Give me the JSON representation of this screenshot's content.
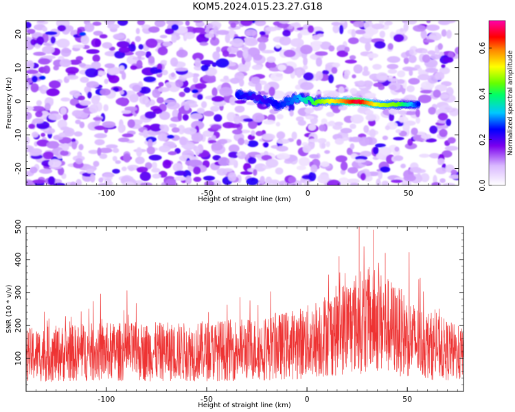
{
  "title": "KOM5.2024.015.23.27.G18",
  "colors": {
    "snr_line": "#ee3333",
    "frame": "#000000",
    "colorbar_stops": [
      "#ffffff",
      "#7b00ee",
      "#0000ff",
      "#00e0ff",
      "#00ff00",
      "#ffff00",
      "#ff0000",
      "#ff00aa"
    ]
  },
  "chart_data": [
    {
      "type": "heatmap",
      "title": "KOM5.2024.015.23.27.G18",
      "xlabel": "Height of straight line (km)",
      "ylabel": "Frequency (Hz)",
      "xlim": [
        -140,
        75
      ],
      "ylim": [
        -25,
        24
      ],
      "xticks": [
        -100,
        -50,
        0,
        50
      ],
      "yticks": [
        -20,
        -10,
        0,
        10,
        20
      ],
      "colorbar": {
        "label": "Normalized spectral amplitude",
        "range": [
          0,
          0.72
        ],
        "ticks": [
          0.0,
          0.2,
          0.4,
          0.6
        ],
        "tick_labels": [
          "0.0",
          "0.2",
          "0.4",
          "0.6"
        ]
      },
      "signal_trace": {
        "x": [
          -35,
          -25,
          -15,
          -5,
          5,
          15,
          25,
          35,
          45,
          55
        ],
        "frequency": [
          2,
          1,
          -1,
          1,
          0,
          0,
          0,
          -1,
          -1,
          -1
        ],
        "amplitude": [
          0.25,
          0.2,
          0.25,
          0.3,
          0.45,
          0.55,
          0.68,
          0.5,
          0.45,
          0.25
        ]
      }
    },
    {
      "type": "line",
      "xlabel": "Height of straight line (km)",
      "ylabel": "SNR (10 * v/v)",
      "xlim": [
        -140,
        78
      ],
      "ylim": [
        0,
        500
      ],
      "xticks": [
        -100,
        -50,
        0,
        50
      ],
      "yticks": [
        100,
        200,
        300,
        400,
        500
      ],
      "series": [
        {
          "x_range": [
            -140,
            78
          ],
          "baseline": [
            [
              -140,
              110
            ],
            [
              -100,
              120
            ],
            [
              -60,
              120
            ],
            [
              -20,
              130
            ],
            [
              0,
              150
            ],
            [
              15,
              185
            ],
            [
              25,
              210
            ],
            [
              35,
              215
            ],
            [
              45,
              185
            ],
            [
              55,
              150
            ],
            [
              78,
              110
            ]
          ],
          "peak_values": [
            [
              26,
              500
            ],
            [
              33,
              490
            ],
            [
              39,
              420
            ],
            [
              16,
              410
            ]
          ]
        }
      ]
    }
  ]
}
